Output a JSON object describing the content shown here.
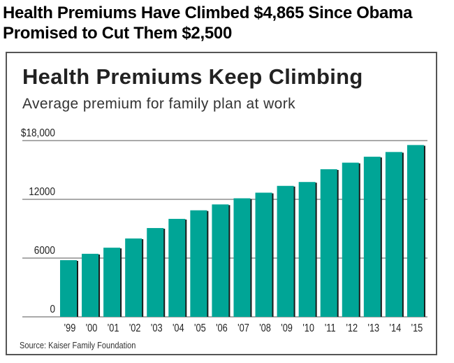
{
  "headline": "Health Premiums Have Climbed $4,865 Since Obama Promised to Cut Them $2,500",
  "chart_data": {
    "type": "bar",
    "title": "Health Premiums Keep Climbing",
    "subtitle": "Average premium for family plan at work",
    "source": "Source: Kaiser Family Foundation",
    "categories": [
      "'99",
      "'00",
      "'01",
      "'02",
      "'03",
      "'04",
      "'05",
      "'06",
      "'07",
      "'08",
      "'09",
      "'10",
      "'11",
      "'12",
      "'13",
      "'14",
      "'15"
    ],
    "values": [
      5791,
      6438,
      7061,
      8003,
      9068,
      10006,
      10880,
      11480,
      12106,
      12680,
      13375,
      13770,
      15073,
      15745,
      16351,
      16834,
      17545
    ],
    "yticks": [
      0,
      6000,
      12000,
      18000
    ],
    "ytick_labels": [
      "0",
      "6000",
      "12000",
      "$18,000"
    ],
    "ylim": [
      0,
      18000
    ],
    "xlabel": "",
    "ylabel": "",
    "grid": true,
    "colors": {
      "bar": "#00a596",
      "shadow": "#1a1a1a",
      "grid": "#777777"
    }
  }
}
